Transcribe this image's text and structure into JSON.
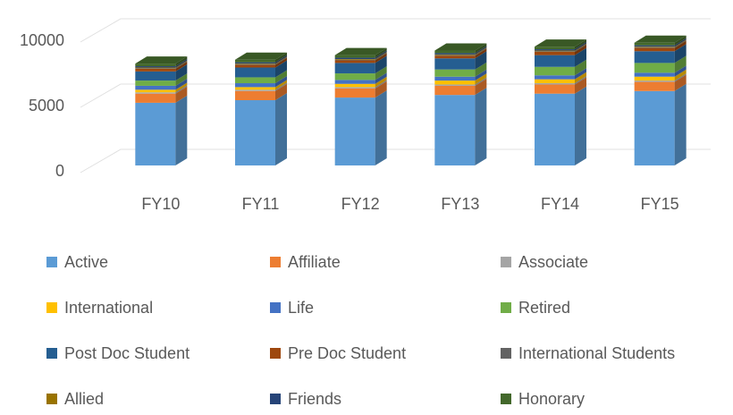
{
  "chart_data": {
    "type": "bar3d_stacked",
    "categories": [
      "FY10",
      "FY11",
      "FY12",
      "FY13",
      "FY14",
      "FY15"
    ],
    "ylim": [
      0,
      10000
    ],
    "yticks": [
      0,
      5000,
      10000
    ],
    "grid": true,
    "series": [
      {
        "name": "Active",
        "color": "#5b9bd5",
        "values": [
          4800,
          5000,
          5200,
          5400,
          5500,
          5700
        ]
      },
      {
        "name": "Affiliate",
        "color": "#ed7d31",
        "values": [
          700,
          700,
          700,
          700,
          700,
          700
        ]
      },
      {
        "name": "Associate",
        "color": "#a5a5a5",
        "values": [
          100,
          100,
          100,
          100,
          100,
          100
        ]
      },
      {
        "name": "International",
        "color": "#ffc000",
        "values": [
          200,
          200,
          250,
          300,
          300,
          300
        ]
      },
      {
        "name": "Life",
        "color": "#4472c4",
        "values": [
          300,
          300,
          300,
          300,
          300,
          300
        ]
      },
      {
        "name": "Retired",
        "color": "#70ad47",
        "values": [
          400,
          450,
          500,
          550,
          650,
          750
        ]
      },
      {
        "name": "Post Doc Student",
        "color": "#255e91",
        "values": [
          700,
          750,
          800,
          850,
          900,
          900
        ]
      },
      {
        "name": "Pre Doc Student",
        "color": "#9e480e",
        "values": [
          200,
          200,
          200,
          200,
          250,
          250
        ]
      },
      {
        "name": "International Students",
        "color": "#636363",
        "values": [
          50,
          50,
          50,
          50,
          50,
          50
        ]
      },
      {
        "name": "Allied",
        "color": "#997300",
        "values": [
          50,
          50,
          50,
          50,
          50,
          50
        ]
      },
      {
        "name": "Friends",
        "color": "#264478",
        "values": [
          100,
          100,
          100,
          100,
          100,
          100
        ]
      },
      {
        "name": "Honorary",
        "color": "#43682b",
        "values": [
          200,
          200,
          200,
          200,
          200,
          200
        ]
      }
    ]
  }
}
